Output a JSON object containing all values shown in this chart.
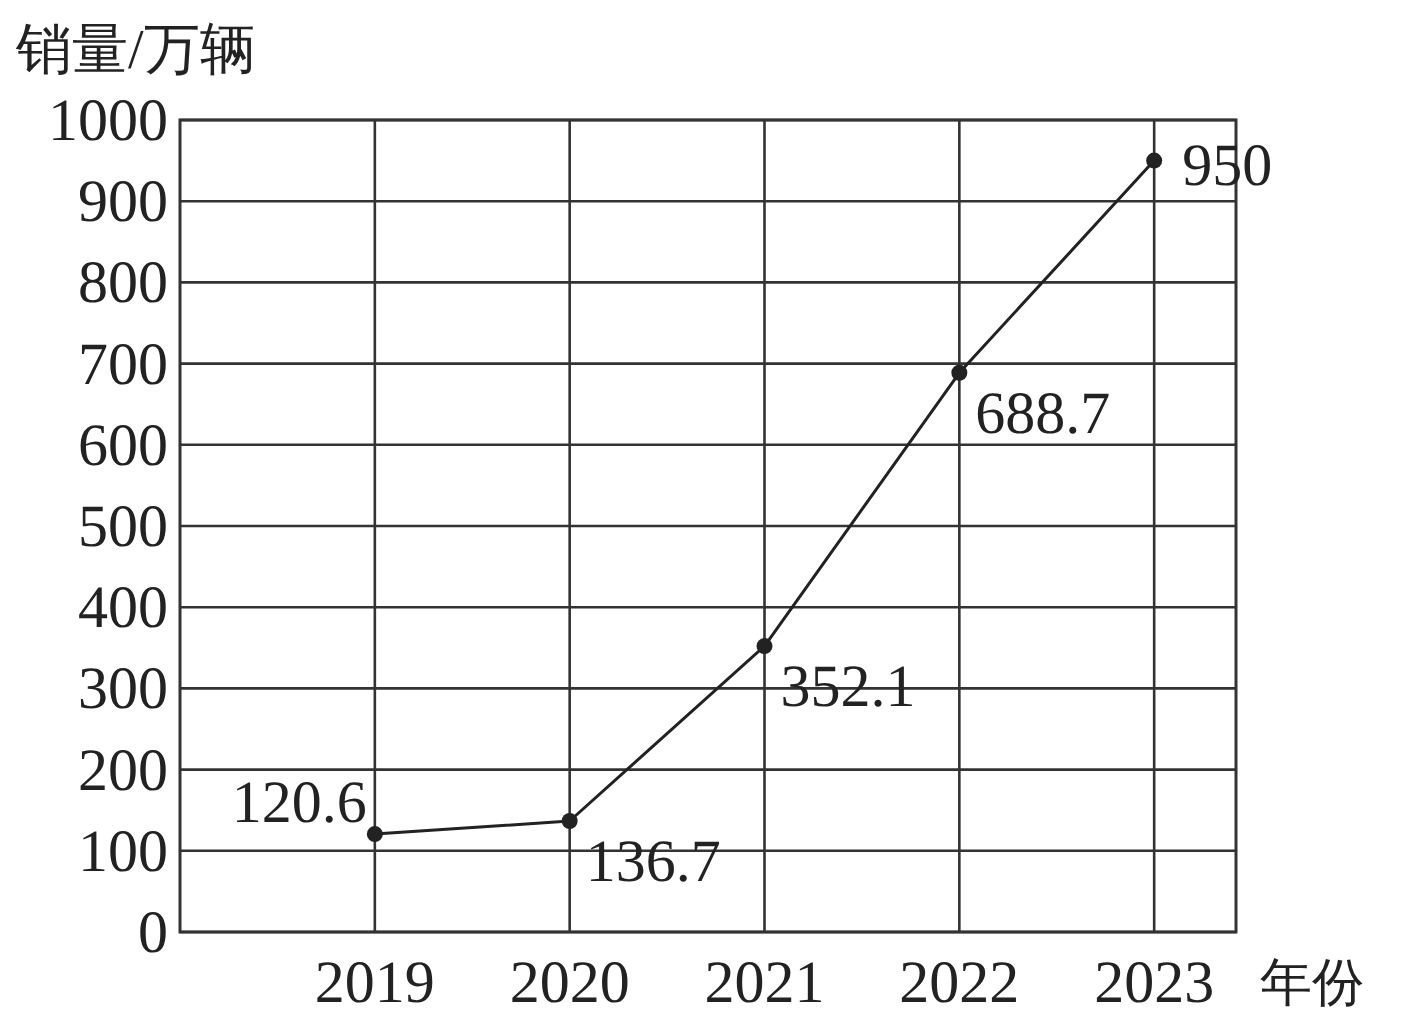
{
  "chart_data": {
    "type": "line",
    "ylabel": "销量/万辆",
    "xlabel": "年份",
    "x": [
      2019,
      2020,
      2021,
      2022,
      2023
    ],
    "values": [
      120.6,
      136.7,
      352.1,
      688.7,
      950
    ],
    "color": "#222222",
    "marker": "circle",
    "line_style": "solid",
    "data_labels": true,
    "grid": true,
    "xlim": [
      2018,
      2023.42
    ],
    "xticks": [
      2019,
      2020,
      2021,
      2022,
      2023
    ],
    "ylim": [
      0,
      1000
    ],
    "yticks": [
      0,
      100,
      200,
      300,
      400,
      500,
      600,
      700,
      800,
      900,
      1000
    ]
  }
}
